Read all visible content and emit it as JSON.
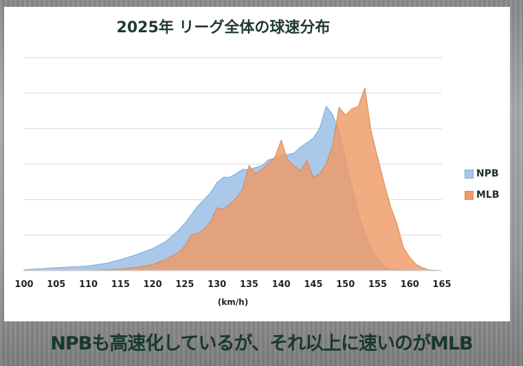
{
  "chart_data": {
    "type": "area",
    "title": "2025年 リーグ全体の球速分布",
    "xlabel": "(km/h)",
    "ylabel": "",
    "xlim": [
      100,
      165
    ],
    "ylim": [
      0,
      6
    ],
    "grid": true,
    "legend_position": "right",
    "xticks": [
      "100",
      "105",
      "110",
      "115",
      "120",
      "125",
      "130",
      "135",
      "140",
      "145",
      "150",
      "155",
      "160",
      "165"
    ],
    "series": [
      {
        "name": "NPB",
        "color": "#a9c8ea",
        "stroke": "#7fa6d4",
        "x": [
          100,
          105,
          110,
          113,
          115,
          117,
          120,
          122,
          124,
          125,
          127,
          129,
          130,
          131,
          132,
          133,
          134,
          135,
          137,
          138,
          140,
          142,
          143,
          145,
          146,
          147,
          148,
          149,
          150,
          151,
          152,
          153,
          154,
          155,
          156,
          157,
          160,
          165
        ],
        "values": [
          0.02,
          0.08,
          0.13,
          0.21,
          0.31,
          0.42,
          0.62,
          0.81,
          1.13,
          1.33,
          1.81,
          2.19,
          2.48,
          2.63,
          2.63,
          2.73,
          2.85,
          2.85,
          2.96,
          3.12,
          3.23,
          3.31,
          3.48,
          3.73,
          4.02,
          4.63,
          4.4,
          3.92,
          3.15,
          2.38,
          1.62,
          1.04,
          0.62,
          0.31,
          0.12,
          0.04,
          0,
          0
        ]
      },
      {
        "name": "MLB",
        "color": "#ee9a66",
        "stroke": "#e0834a",
        "x": [
          100,
          110,
          115,
          118,
          120,
          122,
          124,
          125,
          126,
          127,
          128,
          129,
          130,
          131,
          132,
          133,
          134,
          135,
          136,
          137,
          138,
          139,
          140,
          141,
          142,
          143,
          144,
          145,
          146,
          147,
          148,
          149,
          150,
          151,
          152,
          153,
          154,
          155,
          156,
          157,
          158,
          159,
          160,
          161,
          162,
          163,
          165
        ],
        "values": [
          0,
          0,
          0.04,
          0.1,
          0.17,
          0.31,
          0.5,
          0.69,
          1.0,
          1.04,
          1.17,
          1.37,
          1.77,
          1.73,
          1.87,
          2.04,
          2.29,
          2.96,
          2.73,
          2.85,
          3.02,
          3.19,
          3.67,
          3.12,
          2.96,
          2.81,
          3.1,
          2.63,
          2.73,
          3.0,
          3.54,
          4.6,
          4.38,
          4.56,
          4.63,
          5.15,
          3.92,
          3.19,
          2.48,
          1.81,
          1.33,
          0.65,
          0.37,
          0.17,
          0.08,
          0.02,
          0
        ]
      }
    ]
  },
  "caption": "NPBも高速化しているが、それ以上に速いのがMLB"
}
